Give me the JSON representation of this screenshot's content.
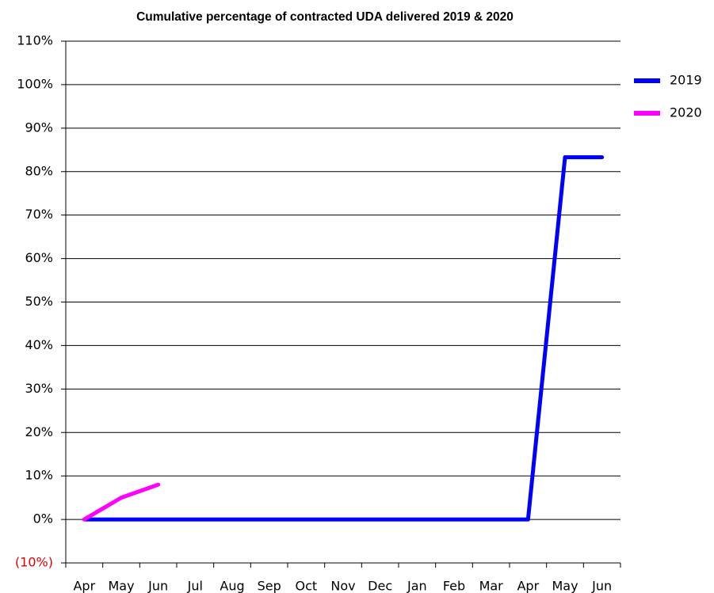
{
  "chart_data": {
    "type": "line",
    "title": "Cumulative percentage of contracted UDA delivered 2019 & 2020",
    "categories": [
      "Apr",
      "May",
      "Jun",
      "Jul",
      "Aug",
      "Sep",
      "Oct",
      "Nov",
      "Dec",
      "Jan",
      "Feb",
      "Mar",
      "Apr",
      "May",
      "Jun"
    ],
    "series": [
      {
        "name": "2019",
        "color": "#0000ff",
        "values": [
          0,
          0,
          0,
          0,
          0,
          0,
          0,
          0,
          0,
          0,
          0,
          0,
          0,
          83.3,
          83.3
        ]
      },
      {
        "name": "2020",
        "color": "#ff00ff",
        "values": [
          0,
          5,
          8,
          null,
          null,
          null,
          null,
          null,
          null,
          null,
          null,
          null,
          null,
          null,
          null
        ]
      }
    ],
    "ylim": [
      -10,
      110
    ],
    "yticks": [
      {
        "value": -10,
        "label": "(10%)"
      },
      {
        "value": 0,
        "label": "0%"
      },
      {
        "value": 10,
        "label": "10%"
      },
      {
        "value": 20,
        "label": "20%"
      },
      {
        "value": 30,
        "label": "30%"
      },
      {
        "value": 40,
        "label": "40%"
      },
      {
        "value": 50,
        "label": "50%"
      },
      {
        "value": 60,
        "label": "60%"
      },
      {
        "value": 70,
        "label": "70%"
      },
      {
        "value": 80,
        "label": "80%"
      },
      {
        "value": 90,
        "label": "90%"
      },
      {
        "value": 100,
        "label": "100%"
      },
      {
        "value": 110,
        "label": "110%"
      }
    ],
    "grid": true,
    "legend": "right"
  }
}
